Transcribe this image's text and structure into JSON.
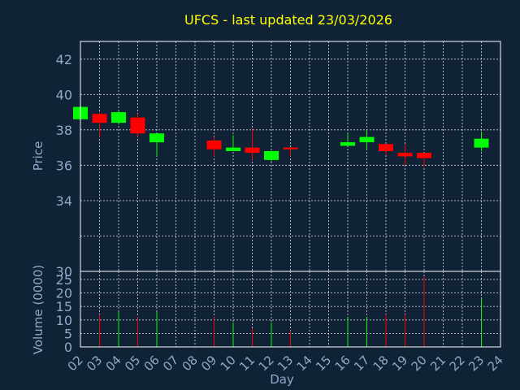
{
  "chart_data": {
    "type": "candlestick",
    "title": "UFCS - last updated 23/03/2026",
    "colors": {
      "background": "#0f2236",
      "title": "#ffff00",
      "axis_text": "#8fa9c8",
      "up": "#00ff00",
      "down": "#ff0000",
      "grid": "#ffffff"
    },
    "price_panel": {
      "ylabel": "Price",
      "ylim": [
        30,
        43
      ],
      "yticks": [
        30,
        32,
        34,
        36,
        38,
        40,
        42
      ],
      "yticks_labeled": [
        "30",
        "",
        "34",
        "36",
        "38",
        "40",
        "42"
      ],
      "grid": true
    },
    "volume_panel": {
      "ylabel": "Volume (0000)",
      "ylim": [
        0,
        28
      ],
      "yticks": [
        0,
        5,
        10,
        15,
        20,
        25
      ],
      "grid": true
    },
    "xlabel": "Day",
    "x_ticks": [
      "02",
      "03",
      "04",
      "05",
      "06",
      "07",
      "08",
      "09",
      "10",
      "11",
      "12",
      "13",
      "14",
      "15",
      "16",
      "17",
      "18",
      "19",
      "20",
      "21",
      "22",
      "23",
      "24"
    ],
    "candles": [
      {
        "day": "02",
        "open": 38.6,
        "close": 39.3,
        "high": 39.3,
        "low": 38.6,
        "volume": 0
      },
      {
        "day": "03",
        "open": 38.9,
        "close": 38.4,
        "high": 39.0,
        "low": 37.6,
        "volume": 12
      },
      {
        "day": "04",
        "open": 38.4,
        "close": 39.0,
        "high": 39.1,
        "low": 38.3,
        "volume": 13
      },
      {
        "day": "05",
        "open": 38.7,
        "close": 37.8,
        "high": 38.9,
        "low": 37.6,
        "volume": 11
      },
      {
        "day": "06",
        "open": 37.3,
        "close": 37.8,
        "high": 37.8,
        "low": 36.5,
        "volume": 13
      },
      {
        "day": "09",
        "open": 37.4,
        "close": 36.9,
        "high": 37.6,
        "low": 36.5,
        "volume": 11
      },
      {
        "day": "10",
        "open": 36.8,
        "close": 37.0,
        "high": 37.7,
        "low": 36.8,
        "volume": 9
      },
      {
        "day": "11",
        "open": 37.0,
        "close": 36.7,
        "high": 38.1,
        "low": 36.3,
        "volume": 7
      },
      {
        "day": "12",
        "open": 36.3,
        "close": 36.8,
        "high": 36.8,
        "low": 36.2,
        "volume": 9
      },
      {
        "day": "13",
        "open": 37.0,
        "close": 36.9,
        "high": 37.0,
        "low": 36.5,
        "volume": 6
      },
      {
        "day": "16",
        "open": 37.1,
        "close": 37.3,
        "high": 37.8,
        "low": 37.1,
        "volume": 11
      },
      {
        "day": "17",
        "open": 37.3,
        "close": 37.6,
        "high": 38.0,
        "low": 36.9,
        "volume": 11
      },
      {
        "day": "18",
        "open": 37.2,
        "close": 36.8,
        "high": 37.2,
        "low": 36.6,
        "volume": 12
      },
      {
        "day": "19",
        "open": 36.7,
        "close": 36.5,
        "high": 37.2,
        "low": 36.0,
        "volume": 12
      },
      {
        "day": "20",
        "open": 36.7,
        "close": 36.4,
        "high": 36.7,
        "low": 35.9,
        "volume": 26
      },
      {
        "day": "23",
        "open": 37.0,
        "close": 37.5,
        "high": 37.9,
        "low": 36.8,
        "volume": 18
      }
    ]
  }
}
